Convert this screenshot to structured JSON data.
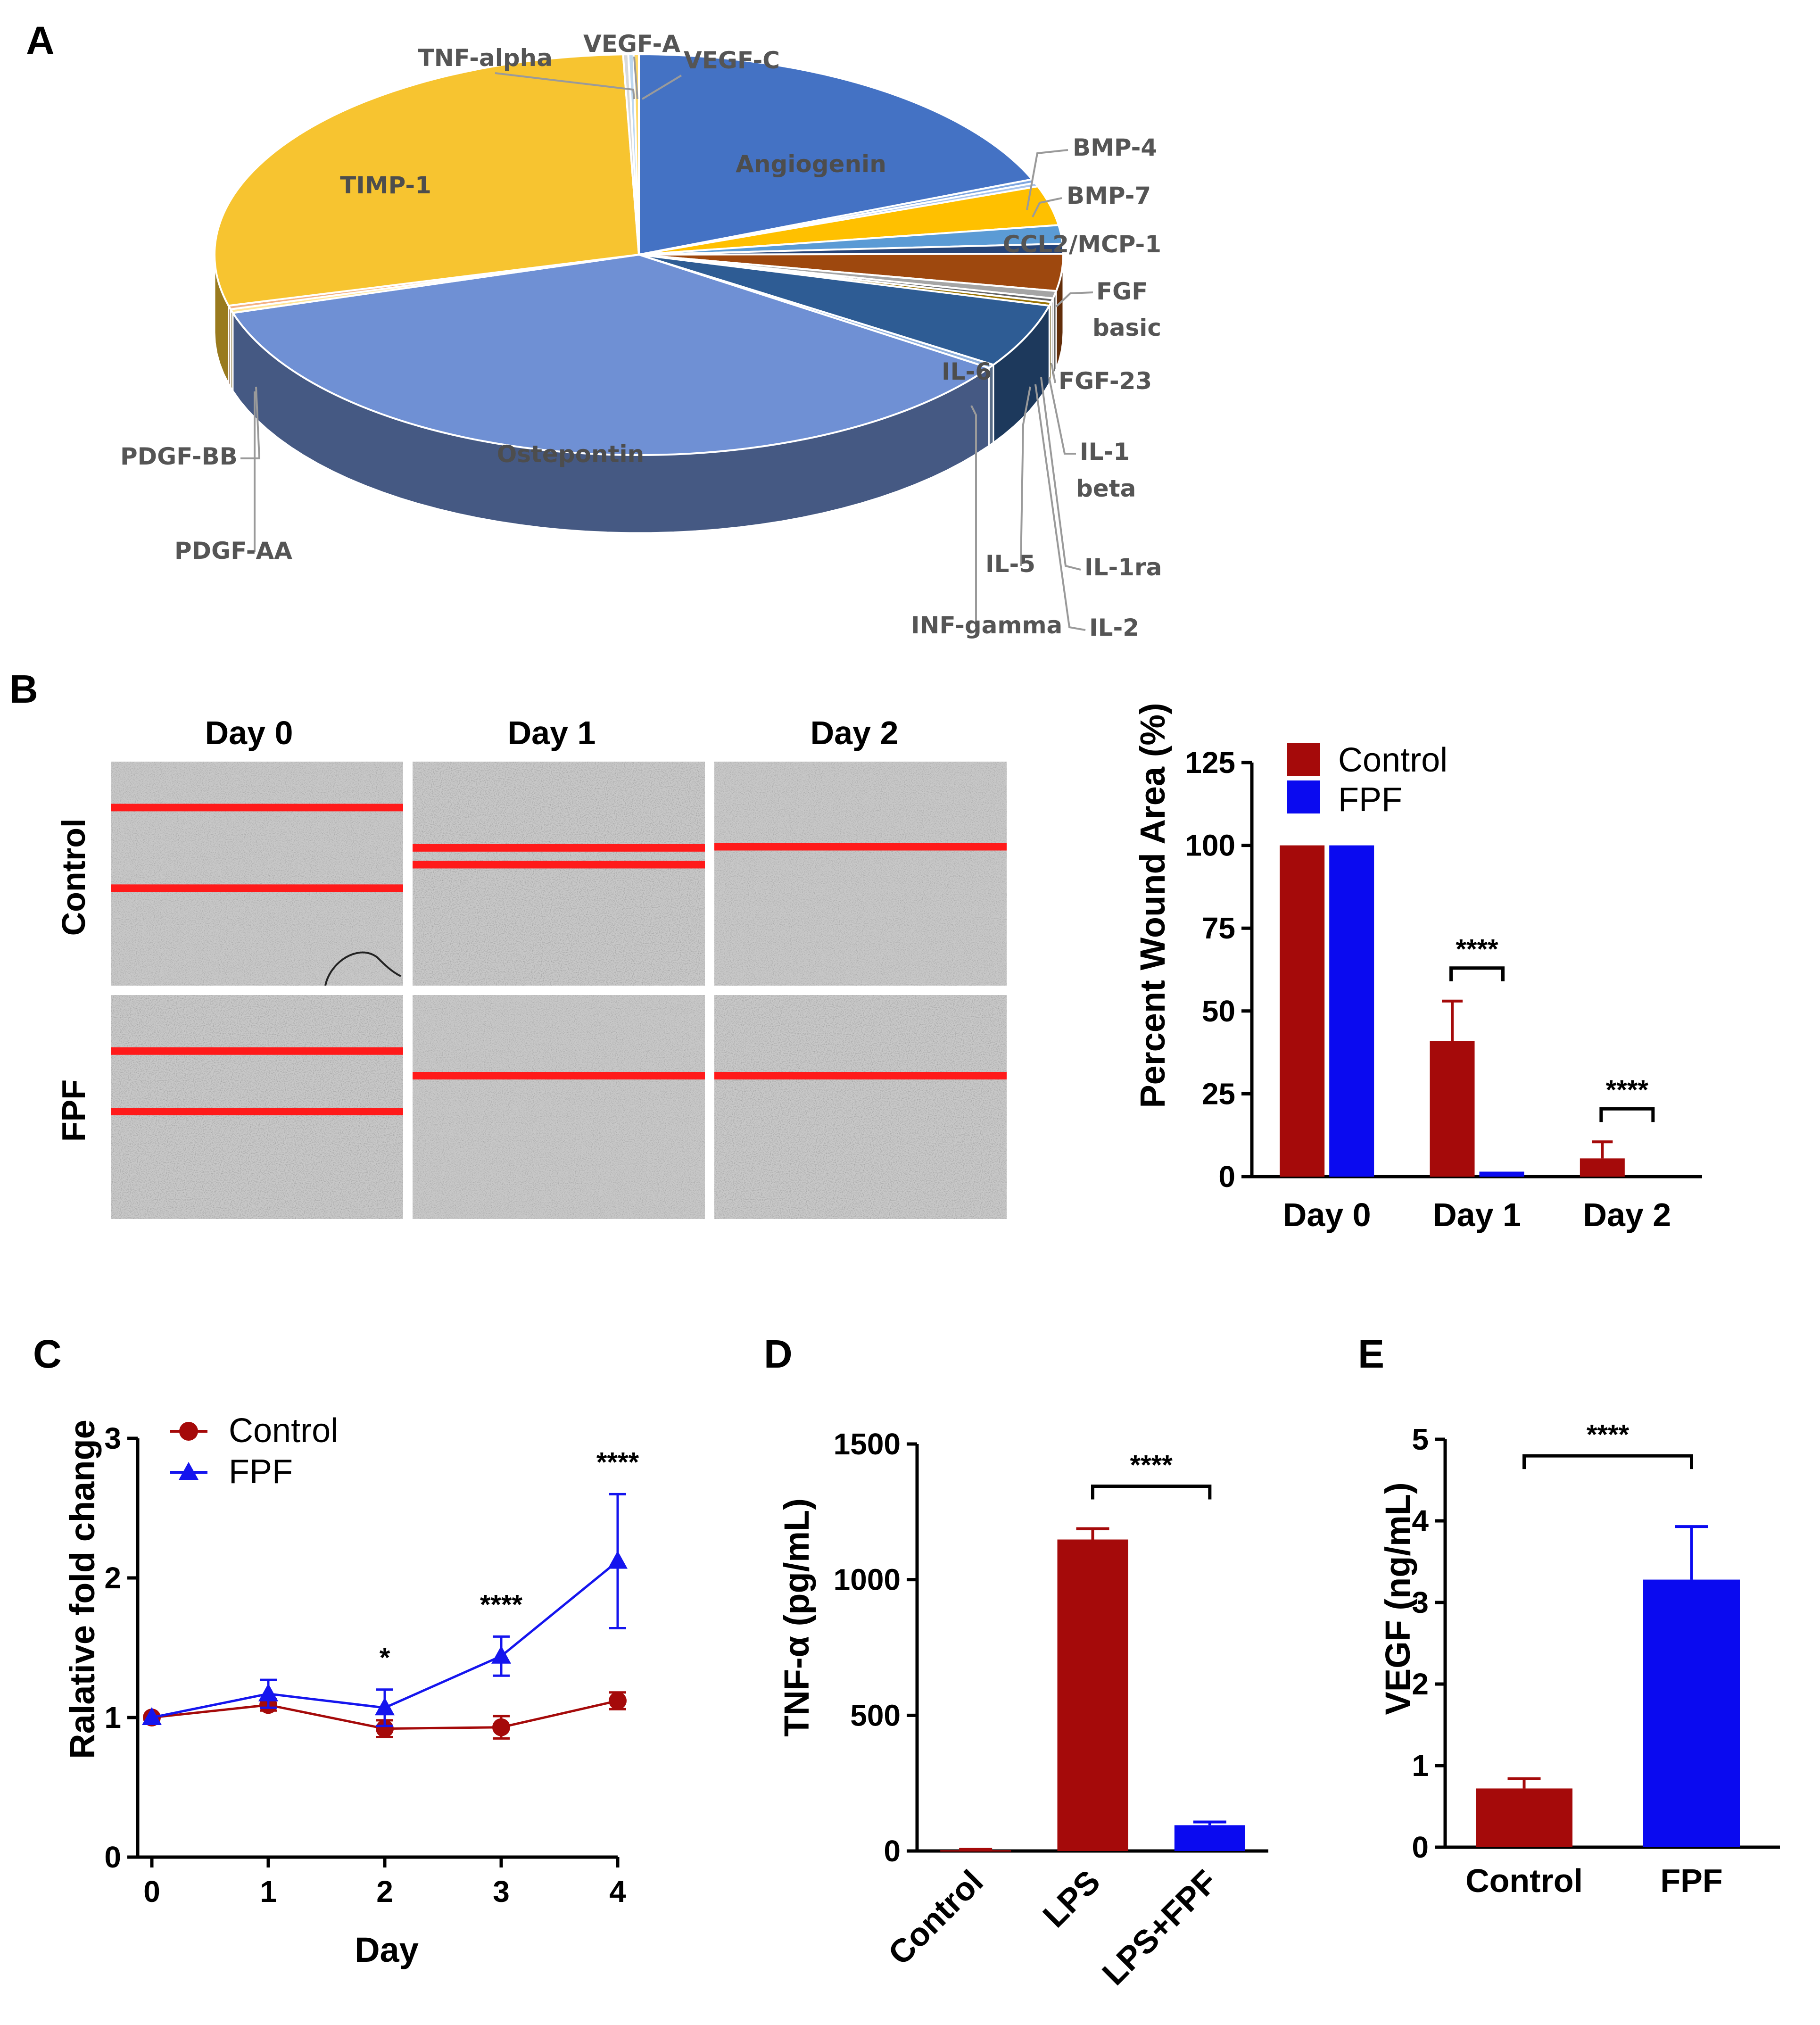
{
  "panels": {
    "A": "A",
    "B": "B",
    "C": "C",
    "D": "D",
    "E": "E"
  },
  "micrographs": {
    "columns": [
      "Day 0",
      "Day 1",
      "Day 2"
    ],
    "rows": [
      {
        "label": "Control",
        "color": "#000000"
      },
      {
        "label": "FPF",
        "color": "#1515ee"
      }
    ]
  },
  "chart_data": [
    {
      "id": "A",
      "type": "pie",
      "title": "",
      "slices": [
        {
          "label": "Angiogenin",
          "value": 19.0,
          "color": "#4472c4"
        },
        {
          "label": "BMP-4",
          "value": 0.3,
          "color": "#7ea6e0"
        },
        {
          "label": "BMP-7",
          "value": 0.3,
          "color": "#a9c4eb"
        },
        {
          "label": "CCL2/MCP-1",
          "value": 3.2,
          "color": "#ffc000"
        },
        {
          "label": "FGF basic",
          "value": 1.5,
          "color": "#5b9bd5"
        },
        {
          "label": "FGF-23",
          "value": 0.8,
          "color": "#264478"
        },
        {
          "label": "IL-1 beta",
          "value": 3.0,
          "color": "#9e480e"
        },
        {
          "label": "IL-1ra",
          "value": 0.6,
          "color": "#a5a5a5"
        },
        {
          "label": "IL-2",
          "value": 0.3,
          "color": "#636363"
        },
        {
          "label": "IL-5",
          "value": 0.3,
          "color": "#997300"
        },
        {
          "label": "IL-6",
          "value": 5.2,
          "color": "#2e5c94"
        },
        {
          "label": "INF-gamma",
          "value": 0.3,
          "color": "#8fb0dc"
        },
        {
          "label": "Ostepontin",
          "value": 36.0,
          "color": "#6f90d4"
        },
        {
          "label": "PDGF-AA",
          "value": 0.3,
          "color": "#ffe699"
        },
        {
          "label": "PDGF-BB",
          "value": 0.3,
          "color": "#f4b183"
        },
        {
          "label": "TIMP-1",
          "value": 28.7,
          "color": "#f7c430"
        },
        {
          "label": "TNF-alpha",
          "value": 0.2,
          "color": "#d9d9d9"
        },
        {
          "label": "VEGF-A",
          "value": 0.2,
          "color": "#bdd7ee"
        },
        {
          "label": "VEGF-C",
          "value": 0.2,
          "color": "#ffd966"
        }
      ],
      "label_lines": {
        "FGF basic": [
          "FGF",
          "basic"
        ],
        "IL-1 beta": [
          "IL-1",
          "beta"
        ]
      }
    },
    {
      "id": "B",
      "type": "bar",
      "categories": [
        "Day 0",
        "Day 1",
        "Day 2"
      ],
      "series": [
        {
          "name": "Control",
          "color": "#a50a0a",
          "values": [
            100,
            41,
            5.5
          ],
          "errors": [
            0,
            12,
            5
          ]
        },
        {
          "name": "FPF",
          "color": "#0a0af0",
          "values": [
            100,
            1.5,
            0
          ],
          "errors": [
            0,
            0,
            0
          ]
        }
      ],
      "xlabel": "",
      "ylabel": "Percent Wound Area (%)",
      "ylim": [
        0,
        125
      ],
      "yticks": [
        0,
        25,
        50,
        75,
        100,
        125
      ],
      "significance": [
        {
          "category": "Day 1",
          "text": "****"
        },
        {
          "category": "Day 2",
          "text": "****"
        }
      ]
    },
    {
      "id": "C",
      "type": "line",
      "x": [
        0,
        1,
        2,
        3,
        4
      ],
      "series": [
        {
          "name": "Control",
          "color": "#a50a0a",
          "marker": "circle",
          "values": [
            1.0,
            1.09,
            0.92,
            0.93,
            1.12
          ],
          "errors": [
            0,
            0.04,
            0.06,
            0.08,
            0.06
          ]
        },
        {
          "name": "FPF",
          "color": "#1515ee",
          "marker": "triangle",
          "values": [
            1.0,
            1.17,
            1.07,
            1.44,
            2.12
          ],
          "errors": [
            0,
            0.1,
            0.13,
            0.14,
            0.48
          ]
        }
      ],
      "xlabel": "Day",
      "ylabel": "Ralative fold change",
      "xlim": [
        0,
        4
      ],
      "ylim": [
        0,
        3
      ],
      "yticks": [
        0,
        1,
        2,
        3
      ],
      "significance": [
        {
          "x": 2,
          "text": "*"
        },
        {
          "x": 3,
          "text": "****"
        },
        {
          "x": 4,
          "text": "****"
        }
      ]
    },
    {
      "id": "D",
      "type": "bar",
      "categories": [
        "Control",
        "LPS",
        "LPS+FPF"
      ],
      "values": [
        3,
        1148,
        95
      ],
      "errors": [
        3,
        40,
        12
      ],
      "colors": [
        "#a50a0a",
        "#a50a0a",
        "#0a0af0"
      ],
      "xlabel": "",
      "ylabel": "TNF-α (pg/mL)",
      "ylim": [
        0,
        1500
      ],
      "yticks": [
        0,
        500,
        1000,
        1500
      ],
      "significance": [
        {
          "from": "LPS",
          "to": "LPS+FPF",
          "text": "****"
        }
      ]
    },
    {
      "id": "E",
      "type": "bar",
      "categories": [
        "Control",
        "FPF"
      ],
      "values": [
        0.72,
        3.28
      ],
      "errors": [
        0.12,
        0.65
      ],
      "colors": [
        "#a50a0a",
        "#0a0af0"
      ],
      "xlabel": "",
      "ylabel": "VEGF (ng/mL)",
      "ylim": [
        0,
        5
      ],
      "yticks": [
        0,
        1,
        2,
        3,
        4,
        5
      ],
      "significance": [
        {
          "from": "Control",
          "to": "FPF",
          "text": "****"
        }
      ]
    }
  ]
}
